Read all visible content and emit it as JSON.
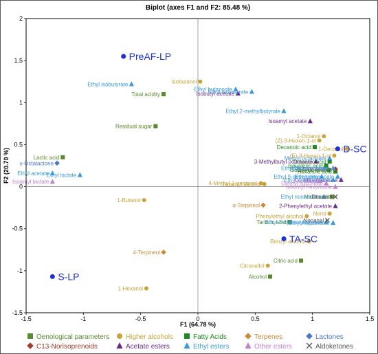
{
  "chart_data": {
    "type": "scatter",
    "title": "Biplot (axes F1 and F2: 85.48 %)",
    "xlabel": "F1 (64.78 %)",
    "ylabel": "F2 (20.70 %)",
    "xlim": [
      -1.5,
      1.5
    ],
    "ylim": [
      -1.5,
      2
    ],
    "xticks": [
      "-1.5",
      "-1",
      "-0.5",
      "0",
      "0.5",
      "1",
      "1.5"
    ],
    "yticks": [
      "-1.5",
      "-1",
      "-0.5",
      "0",
      "0.5",
      "1",
      "1.5",
      "2"
    ],
    "legend": "bottom",
    "categories": [
      {
        "key": "oeno",
        "name": "Oenological parameters",
        "color": "#5a8a2e",
        "marker": "square"
      },
      {
        "key": "alc",
        "name": "Higher alcohols",
        "color": "#c9a23a",
        "marker": "circle"
      },
      {
        "key": "fatty",
        "name": "Fatty Acids",
        "color": "#1f8a1f",
        "marker": "square"
      },
      {
        "key": "terp",
        "name": "Terpenes",
        "color": "#c98a3a",
        "marker": "diamond"
      },
      {
        "key": "lact",
        "name": "Lactones",
        "color": "#4a78c8",
        "marker": "diamond"
      },
      {
        "key": "c13",
        "name": "C13-Norisoprenoids",
        "color": "#a33a2a",
        "marker": "diamond"
      },
      {
        "key": "acet",
        "name": "Acetate esters",
        "color": "#6a2a8a",
        "marker": "triangle"
      },
      {
        "key": "ethyl",
        "name": "Ethyl esters",
        "color": "#3a9ae0",
        "marker": "triangle"
      },
      {
        "key": "other",
        "name": "Other esters",
        "color": "#c080d0",
        "marker": "triangle"
      },
      {
        "key": "aldo",
        "name": "Aldoketones",
        "color": "#555555",
        "marker": "cross"
      }
    ],
    "observations": [
      {
        "label": "PreAF-LP",
        "x": -0.65,
        "y": 1.55
      },
      {
        "label": "D-SC",
        "x": 1.22,
        "y": 0.45
      },
      {
        "label": "TA-SC",
        "x": 0.75,
        "y": -0.62
      },
      {
        "label": "S-LP",
        "x": -1.27,
        "y": -1.07
      }
    ],
    "variables": [
      {
        "label": "Total acidity",
        "cat": "oeno",
        "x": -0.3,
        "y": 1.1
      },
      {
        "label": "Residual sugar",
        "cat": "oeno",
        "x": -0.37,
        "y": 0.72
      },
      {
        "label": "Lactic acid",
        "cat": "oeno",
        "x": -1.18,
        "y": 0.35
      },
      {
        "label": "Malic acid",
        "cat": "oeno",
        "x": 1.17,
        "y": -0.12
      },
      {
        "label": "Tartaric acid",
        "cat": "oeno",
        "x": 0.8,
        "y": -0.42
      },
      {
        "label": "Citric acid",
        "cat": "oeno",
        "x": 0.9,
        "y": -0.88
      },
      {
        "label": "Alcohol",
        "cat": "oeno",
        "x": 0.63,
        "y": -1.07
      },
      {
        "label": "Isobutanol",
        "cat": "alc",
        "x": 0.02,
        "y": 1.25
      },
      {
        "label": "1-Octanol",
        "cat": "alc",
        "x": 1.1,
        "y": 0.6
      },
      {
        "label": "(Z)-3-Hexen-1-ol",
        "cat": "alc",
        "x": 1.06,
        "y": 0.55
      },
      {
        "label": "1-Decanol",
        "cat": "alc",
        "x": 1.3,
        "y": 0.45
      },
      {
        "label": "4-Methyl-1-pentanol",
        "cat": "alc",
        "x": 0.55,
        "y": 0.04
      },
      {
        "label": "1-Butanol",
        "cat": "alc",
        "x": -0.47,
        "y": -0.16
      },
      {
        "label": "Phenylethyl alcohol",
        "cat": "alc",
        "x": 0.95,
        "y": -0.35
      },
      {
        "label": "Nerol",
        "cat": "alc",
        "x": 1.15,
        "y": -0.32
      },
      {
        "label": "Benzyl alcohol",
        "cat": "alc",
        "x": 0.97,
        "y": -0.65
      },
      {
        "label": "Citronellol",
        "cat": "alc",
        "x": 0.61,
        "y": -0.94
      },
      {
        "label": "1-Hexanol",
        "cat": "alc",
        "x": -0.45,
        "y": -1.21
      },
      {
        "label": "Decanoic acid",
        "cat": "fatty",
        "x": 1.02,
        "y": 0.47
      },
      {
        "label": "Octanoic acid",
        "cat": "fatty",
        "x": 1.15,
        "y": 0.3
      },
      {
        "label": "Isovaleric acid",
        "cat": "fatty",
        "x": 1.12,
        "y": 0.25
      },
      {
        "label": "Isobutyric acid",
        "cat": "fatty",
        "x": 1.14,
        "y": 0.2
      },
      {
        "label": "Hexanoic acid",
        "cat": "fatty",
        "x": 1.2,
        "y": 0.18
      },
      {
        "label": "α-Terpineol",
        "cat": "terp",
        "x": 0.57,
        "y": -0.22
      },
      {
        "label": "4-Terpineol",
        "cat": "terp",
        "x": -0.3,
        "y": -0.78
      },
      {
        "label": "γ-Octalactone",
        "cat": "lact",
        "x": -1.23,
        "y": 0.28
      },
      {
        "label": "β-Damascone",
        "cat": "c13",
        "x": 1.2,
        "y": 0.21
      },
      {
        "label": "Isobutyl acetate",
        "cat": "acet",
        "x": 0.35,
        "y": 1.11
      },
      {
        "label": "Isoamyl acetate",
        "cat": "acet",
        "x": 0.98,
        "y": 0.78
      },
      {
        "label": "3-Methylbutyl octanoate",
        "cat": "acet",
        "x": 1.03,
        "y": 0.3
      },
      {
        "label": "2-Phenylethyl acetate",
        "cat": "acet",
        "x": 1.2,
        "y": -0.23
      },
      {
        "label": "Hexyl acetate",
        "cat": "acet",
        "x": 1.25,
        "y": 0.08
      },
      {
        "label": "Ethyl isobutyrate",
        "cat": "ethyl",
        "x": -0.58,
        "y": 1.22
      },
      {
        "label": "Ethyl butanoate",
        "cat": "ethyl",
        "x": 0.33,
        "y": 1.16
      },
      {
        "label": "Ethyl isovalerate",
        "cat": "ethyl",
        "x": 0.47,
        "y": 1.13
      },
      {
        "label": "Ethyl 2-methylbutyrate",
        "cat": "ethyl",
        "x": 0.75,
        "y": 0.9
      },
      {
        "label": "Ethyl acetate",
        "cat": "ethyl",
        "x": -1.27,
        "y": 0.16
      },
      {
        "label": "Ethyl lactate",
        "cat": "ethyl",
        "x": -1.03,
        "y": 0.14
      },
      {
        "label": "Methyl octanoate",
        "cat": "ethyl",
        "x": 1.15,
        "y": 0.34
      },
      {
        "label": "Ethyl hexanoate",
        "cat": "ethyl",
        "x": 1.1,
        "y": 0.22
      },
      {
        "label": "Ethyl octanoate",
        "cat": "ethyl",
        "x": 1.18,
        "y": 0.22
      },
      {
        "label": "Ethyl 9-decenoate",
        "cat": "ethyl",
        "x": 1.08,
        "y": 0.12
      },
      {
        "label": "Ethyl decanoate",
        "cat": "ethyl",
        "x": 1.22,
        "y": 0.12
      },
      {
        "label": "Ethyl dodecanoate",
        "cat": "ethyl",
        "x": 1.18,
        "y": 0.08
      },
      {
        "label": "Ethyl nonanoate",
        "cat": "ethyl",
        "x": 1.1,
        "y": -0.12
      },
      {
        "label": "Ethyl 3-hydroxybutyrate",
        "cat": "ethyl",
        "x": 1.12,
        "y": -0.42
      },
      {
        "label": "Ethyl heptanoate",
        "cat": "ethyl",
        "x": 1.18,
        "y": -0.43
      },
      {
        "label": "Isoamyl lactate",
        "cat": "other",
        "x": -1.27,
        "y": 0.06
      },
      {
        "label": "Isoamyl hexanoate",
        "cat": "other",
        "x": 1.2,
        "y": 0.0
      },
      {
        "label": "Nerolidol",
        "cat": "other",
        "x": 1.06,
        "y": 0.07
      },
      {
        "label": "Diethyl succinate",
        "cat": "other",
        "x": 1.12,
        "y": 0.04
      },
      {
        "label": "Decanal",
        "cat": "aldo",
        "x": 1.2,
        "y": -0.12
      },
      {
        "label": "Nonanal",
        "cat": "aldo",
        "x": 1.13,
        "y": -0.4
      },
      {
        "label": "(E)-3-Hexen-1-ol",
        "cat": "alc",
        "x": 1.19,
        "y": 0.37
      },
      {
        "label": "Isoamyl alcohol",
        "cat": "alc",
        "x": 0.58,
        "y": 0.03
      }
    ]
  }
}
